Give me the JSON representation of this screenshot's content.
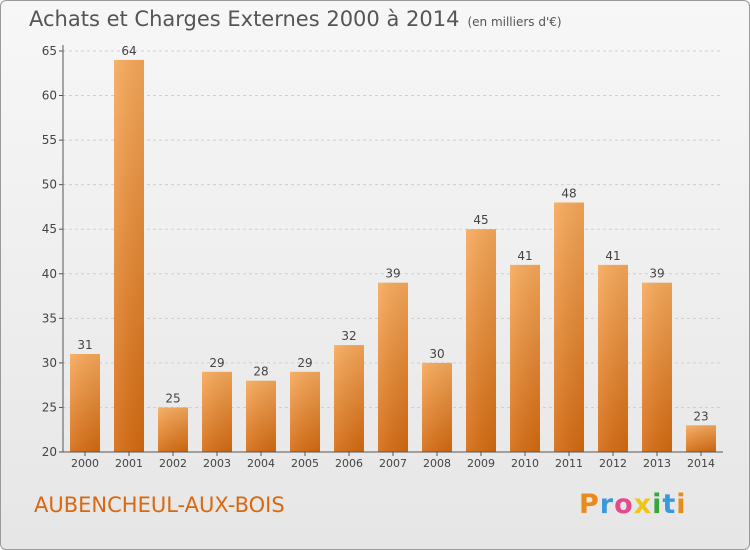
{
  "header": {
    "title": "Achats et Charges Externes 2000 à 2014",
    "subtitle": "(en milliers d'€)"
  },
  "footer": {
    "place": "AUBENCHEUL-AUX-BOIS",
    "logo_letters": [
      "P",
      "r",
      "o",
      "x",
      "i",
      "t",
      "i"
    ]
  },
  "colors": {
    "bar_top": "#f7a95a",
    "bar_bottom": "#d46a10",
    "grid": "#cfcfcf",
    "axis": "#555555",
    "place": "#d9680f"
  },
  "chart_data": {
    "type": "bar",
    "title": "Achats et Charges Externes 2000 à 2014",
    "subtitle": "(en milliers d'€)",
    "categories": [
      "2000",
      "2001",
      "2002",
      "2003",
      "2004",
      "2005",
      "2006",
      "2007",
      "2008",
      "2009",
      "2010",
      "2011",
      "2012",
      "2013",
      "2014"
    ],
    "values": [
      31,
      64,
      25,
      29,
      28,
      29,
      32,
      39,
      30,
      45,
      41,
      48,
      41,
      39,
      23
    ],
    "xlabel": "",
    "ylabel": "",
    "ylim": [
      20,
      65
    ],
    "yticks": [
      20,
      25,
      30,
      35,
      40,
      45,
      50,
      55,
      60,
      65
    ],
    "grid": true,
    "data_labels": true
  }
}
